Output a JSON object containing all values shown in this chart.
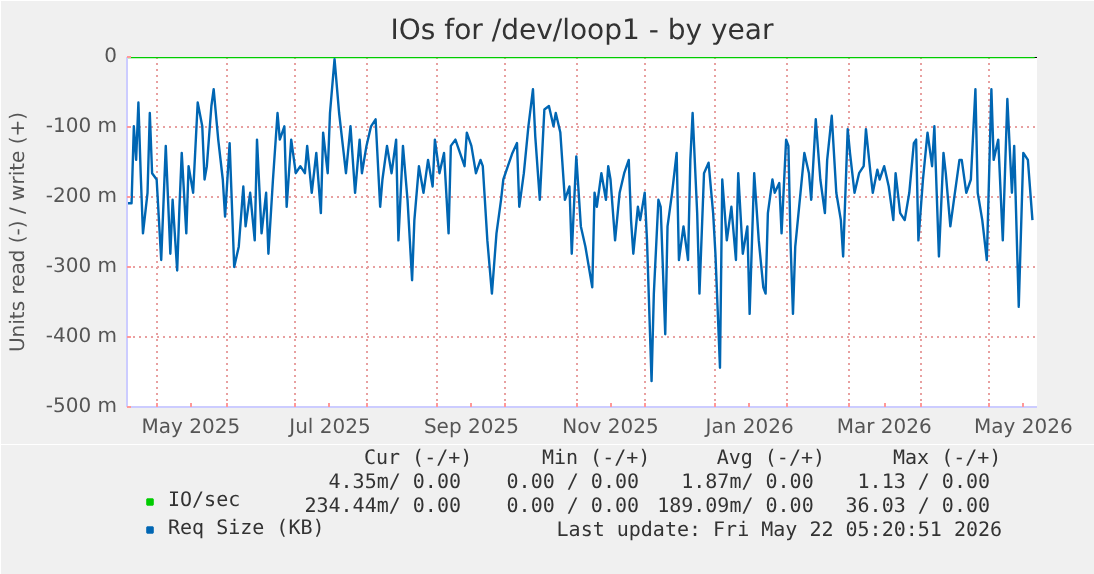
{
  "chart_data": {
    "type": "line",
    "title": "IOs for /dev/loop1 - by year",
    "ylabel": "Units read (-) / write (+)",
    "xlim": [
      "2025-04-18",
      "2026-05-22"
    ],
    "ylim": [
      -500,
      0
    ],
    "xticks": [
      {
        "value": "2025-05-01",
        "label": null
      },
      {
        "value": "2025-05-16",
        "label": "May 2025"
      },
      {
        "value": "2025-06-01",
        "label": null
      },
      {
        "value": "2025-07-01",
        "label": null
      },
      {
        "value": "2025-07-16",
        "label": "Jul 2025"
      },
      {
        "value": "2025-08-01",
        "label": null
      },
      {
        "value": "2025-09-01",
        "label": null
      },
      {
        "value": "2025-09-16",
        "label": "Sep 2025"
      },
      {
        "value": "2025-10-01",
        "label": null
      },
      {
        "value": "2025-11-01",
        "label": null
      },
      {
        "value": "2025-11-16",
        "label": "Nov 2025"
      },
      {
        "value": "2025-12-01",
        "label": null
      },
      {
        "value": "2026-01-01",
        "label": null
      },
      {
        "value": "2026-01-16",
        "label": "Jan 2026"
      },
      {
        "value": "2026-02-01",
        "label": null
      },
      {
        "value": "2026-03-01",
        "label": null
      },
      {
        "value": "2026-03-16",
        "label": "Mar 2026"
      },
      {
        "value": "2026-04-01",
        "label": null
      },
      {
        "value": "2026-05-01",
        "label": null
      },
      {
        "value": "2026-05-16",
        "label": "May 2026"
      }
    ],
    "yticks": [
      {
        "value": -500,
        "label": "-500 m"
      },
      {
        "value": -400,
        "label": "-400 m"
      },
      {
        "value": -300,
        "label": "-300 m"
      },
      {
        "value": -200,
        "label": "-200 m"
      },
      {
        "value": -100,
        "label": "-100 m"
      },
      0
    ],
    "grid": true,
    "legend": "bottom left",
    "ref_lines": [
      {
        "axis": "y",
        "value": 0,
        "color": "#000000"
      }
    ],
    "annotations": [
      "Cur (-/+)",
      "Min (-/+)",
      "Avg (-/+)",
      "Max (-/+)",
      "4.35m/  0.00",
      "0.00 /  0.00",
      "1.87m/  0.00",
      "1.13 /  0.00",
      "234.44m/  0.00",
      "0.00 /  0.00",
      "189.09m/  0.00",
      "36.03 /  0.00",
      "Last update: Fri May 22 05:20:51 2026"
    ],
    "series": [
      {
        "name": "IO/sec",
        "color": "#00cc00",
        "x": [
          "2025-04-18",
          "2026-05-21"
        ],
        "values": [
          0,
          0
        ]
      },
      {
        "name": "Req Size (KB)",
        "color": "#0066b3",
        "x": [
          "2025-04-18",
          "2025-04-20",
          "2025-04-21",
          "2025-04-22",
          "2025-04-23",
          "2025-04-24",
          "2025-04-25",
          "2025-04-27",
          "2025-04-28",
          "2025-04-29",
          "2025-05-01",
          "2025-05-03",
          "2025-05-05",
          "2025-05-07",
          "2025-05-08",
          "2025-05-10",
          "2025-05-11",
          "2025-05-12",
          "2025-05-14",
          "2025-05-15",
          "2025-05-17",
          "2025-05-19",
          "2025-05-21",
          "2025-05-22",
          "2025-05-23",
          "2025-05-25",
          "2025-05-26",
          "2025-05-28",
          "2025-05-30",
          "2025-05-31",
          "2025-06-02",
          "2025-06-04",
          "2025-06-06",
          "2025-06-08",
          "2025-06-09",
          "2025-06-11",
          "2025-06-13",
          "2025-06-14",
          "2025-06-16",
          "2025-06-18",
          "2025-06-19",
          "2025-06-21",
          "2025-06-23",
          "2025-06-24",
          "2025-06-26",
          "2025-06-27",
          "2025-06-29",
          "2025-07-01",
          "2025-07-03",
          "2025-07-05",
          "2025-07-06",
          "2025-07-08",
          "2025-07-10",
          "2025-07-12",
          "2025-07-13",
          "2025-07-15",
          "2025-07-16",
          "2025-07-18",
          "2025-07-20",
          "2025-07-22",
          "2025-07-23",
          "2025-07-25",
          "2025-07-27",
          "2025-07-29",
          "2025-07-30",
          "2025-08-01",
          "2025-08-03",
          "2025-08-05",
          "2025-08-07",
          "2025-08-08",
          "2025-08-10",
          "2025-08-12",
          "2025-08-14",
          "2025-08-15",
          "2025-08-17",
          "2025-08-19",
          "2025-08-21",
          "2025-08-22",
          "2025-08-24",
          "2025-08-26",
          "2025-08-28",
          "2025-08-30",
          "2025-08-31",
          "2025-09-02",
          "2025-09-04",
          "2025-09-06",
          "2025-09-07",
          "2025-09-09",
          "2025-09-11",
          "2025-09-13",
          "2025-09-14",
          "2025-09-16",
          "2025-09-18",
          "2025-09-20",
          "2025-09-21",
          "2025-09-23",
          "2025-09-25",
          "2025-09-27",
          "2025-09-29",
          "2025-09-30",
          "2025-10-02",
          "2025-10-04",
          "2025-10-06",
          "2025-10-07",
          "2025-10-09",
          "2025-10-11",
          "2025-10-13",
          "2025-10-14",
          "2025-10-16",
          "2025-10-18",
          "2025-10-20",
          "2025-10-22",
          "2025-10-23",
          "2025-10-25",
          "2025-10-27",
          "2025-10-29",
          "2025-10-30",
          "2025-11-01",
          "2025-11-03",
          "2025-11-05",
          "2025-11-08",
          "2025-11-09",
          "2025-11-10",
          "2025-11-12",
          "2025-11-14",
          "2025-11-15",
          "2025-11-16",
          "2025-11-18",
          "2025-11-20",
          "2025-11-22",
          "2025-11-24",
          "2025-11-25",
          "2025-11-26",
          "2025-11-28",
          "2025-11-29",
          "2025-12-01",
          "2025-12-02",
          "2025-12-04",
          "2025-12-05",
          "2025-12-07",
          "2025-12-08",
          "2025-12-10",
          "2025-12-11",
          "2025-12-13",
          "2025-12-15",
          "2025-12-16",
          "2025-12-18",
          "2025-12-20",
          "2025-12-21",
          "2025-12-22",
          "2025-12-24",
          "2025-12-25",
          "2025-12-27",
          "2025-12-29",
          "2025-12-31",
          "2026-01-01",
          "2026-01-03",
          "2026-01-04",
          "2026-01-06",
          "2026-01-08",
          "2026-01-10",
          "2026-01-11",
          "2026-01-13",
          "2026-01-15",
          "2026-01-16",
          "2026-01-18",
          "2026-01-20",
          "2026-01-22",
          "2026-01-23",
          "2026-01-24",
          "2026-01-26",
          "2026-01-27",
          "2026-01-29",
          "2026-01-30",
          "2026-02-01",
          "2026-02-02",
          "2026-02-03",
          "2026-02-04",
          "2026-02-05",
          "2026-02-07",
          "2026-02-09",
          "2026-02-11",
          "2026-02-12",
          "2026-02-14",
          "2026-02-16",
          "2026-02-18",
          "2026-02-19",
          "2026-02-21",
          "2026-02-23",
          "2026-02-25",
          "2026-02-26",
          "2026-02-28",
          "2026-03-01",
          "2026-03-03",
          "2026-03-05",
          "2026-03-07",
          "2026-03-08",
          "2026-03-10",
          "2026-03-11",
          "2026-03-13",
          "2026-03-14",
          "2026-03-16",
          "2026-03-18",
          "2026-03-20",
          "2026-03-21",
          "2026-03-23",
          "2026-03-25",
          "2026-03-27",
          "2026-03-29",
          "2026-03-30",
          "2026-03-31",
          "2026-04-02",
          "2026-04-04",
          "2026-04-06",
          "2026-04-07",
          "2026-04-09",
          "2026-04-11",
          "2026-04-12",
          "2026-04-14",
          "2026-04-16",
          "2026-04-18",
          "2026-04-19",
          "2026-04-21",
          "2026-04-23",
          "2026-04-25",
          "2026-04-26",
          "2026-04-28",
          "2026-04-30",
          "2026-05-02",
          "2026-05-03",
          "2026-05-05",
          "2026-05-07",
          "2026-05-09",
          "2026-05-11",
          "2026-05-12",
          "2026-05-14",
          "2026-05-16",
          "2026-05-18",
          "2026-05-20"
        ],
        "values": [
          -209,
          -209,
          -99,
          -147,
          -65,
          -166,
          -252,
          -194,
          -80,
          -166,
          -175,
          -290,
          -127,
          -281,
          -204,
          -305,
          -214,
          -137,
          -252,
          -156,
          -194,
          -65,
          -99,
          -175,
          -156,
          -70,
          -46,
          -118,
          -175,
          -228,
          -123,
          -300,
          -271,
          -185,
          -242,
          -194,
          -262,
          -118,
          -252,
          -194,
          -281,
          -175,
          -80,
          -118,
          -99,
          -214,
          -118,
          -166,
          -156,
          -166,
          -127,
          -194,
          -137,
          -223,
          -108,
          -166,
          -80,
          -3,
          -80,
          -137,
          -166,
          -99,
          -194,
          -118,
          -166,
          -127,
          -99,
          -89,
          -214,
          -175,
          -127,
          -166,
          -118,
          -262,
          -127,
          -204,
          -319,
          -233,
          -156,
          -194,
          -147,
          -185,
          -118,
          -166,
          -137,
          -252,
          -127,
          -118,
          -137,
          -156,
          -108,
          -127,
          -166,
          -147,
          -156,
          -262,
          -338,
          -252,
          -204,
          -175,
          -156,
          -137,
          -123,
          -214,
          -166,
          -99,
          -46,
          -113,
          -204,
          -75,
          -70,
          -99,
          -80,
          -108,
          -204,
          -185,
          -281,
          -142,
          -242,
          -271,
          -329,
          -194,
          -214,
          -166,
          -204,
          -156,
          -175,
          -262,
          -194,
          -166,
          -147,
          -233,
          -281,
          -214,
          -233,
          -194,
          -262,
          -463,
          -338,
          -204,
          -214,
          -396,
          -242,
          -194,
          -137,
          -290,
          -242,
          -290,
          -147,
          -80,
          -223,
          -338,
          -166,
          -151,
          -223,
          -281,
          -444,
          -175,
          -262,
          -214,
          -290,
          -166,
          -281,
          -242,
          -367,
          -166,
          -262,
          -329,
          -338,
          -223,
          -175,
          -194,
          -180,
          -252,
          -118,
          -127,
          -271,
          -367,
          -271,
          -204,
          -137,
          -166,
          -204,
          -89,
          -175,
          -223,
          -147,
          -84,
          -194,
          -233,
          -285,
          -103,
          -137,
          -194,
          -166,
          -156,
          -103,
          -166,
          -194,
          -161,
          -175,
          -156,
          -185,
          -233,
          -166,
          -223,
          -233,
          -194,
          -123,
          -118,
          -262,
          -175,
          -108,
          -156,
          -99,
          -285,
          -137,
          -166,
          -242,
          -194,
          -147,
          -147,
          -194,
          -175,
          -46,
          -194,
          -233,
          -290,
          -46,
          -147,
          -118,
          -262,
          -60,
          -194,
          -127,
          -357,
          -137,
          -147,
          -233
        ]
      }
    ]
  }
}
